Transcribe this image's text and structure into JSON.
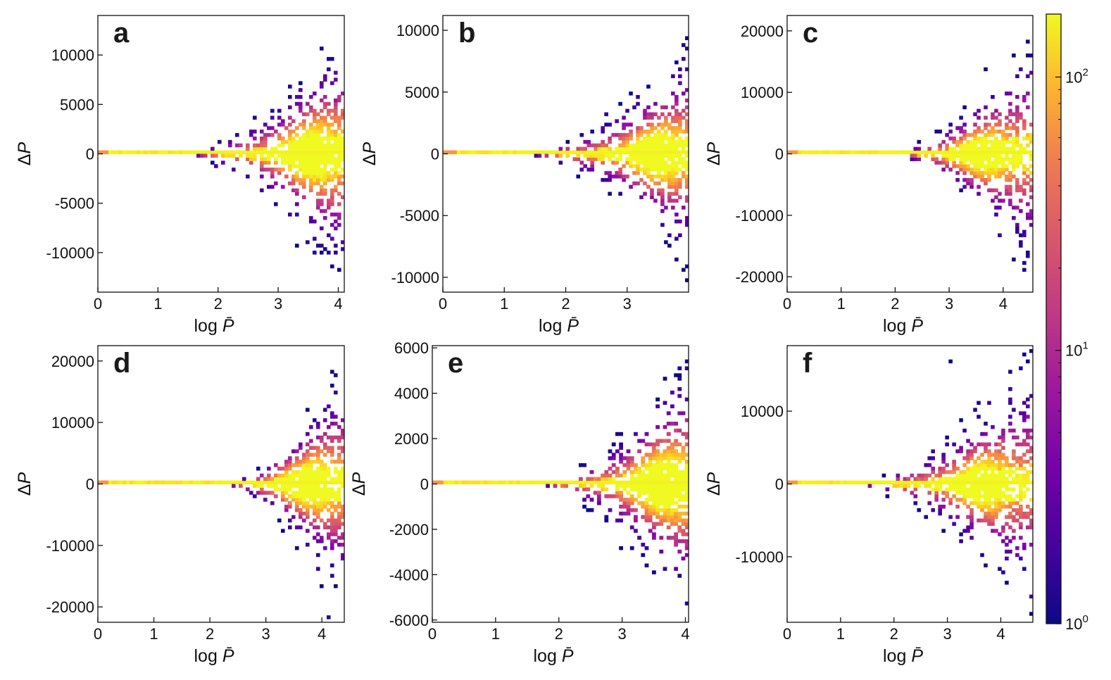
{
  "chart_data": {
    "colorbar": {
      "colormap": "plasma",
      "scale": "log",
      "range": [
        1,
        170
      ],
      "tick_labels": [
        {
          "value": 1,
          "base": "10",
          "exp": "0"
        },
        {
          "value": 10,
          "base": "10",
          "exp": "1"
        },
        {
          "value": 100,
          "base": "10",
          "exp": "2"
        }
      ]
    },
    "panels": [
      {
        "letter": "a",
        "type": "heatmap",
        "xlabel": "log",
        "xlabel_var": "P̄",
        "ylabel": "ΔP",
        "xlim": [
          0,
          4.1
        ],
        "ylim": [
          -14000,
          14000
        ],
        "xticks": [
          0,
          1,
          2,
          3,
          4
        ],
        "xtick_labels": [
          "0",
          "1",
          "2",
          "3",
          "4"
        ],
        "yticks": [
          -10000,
          -5000,
          0,
          5000,
          10000
        ],
        "ytick_labels": [
          "-10000",
          "-5000",
          "0",
          "5000",
          "10000"
        ],
        "spread_start_x": 1.4,
        "bright_core_x": 3.5,
        "envelope_max": 14000
      },
      {
        "letter": "b",
        "type": "heatmap",
        "xlabel": "log",
        "xlabel_var": "P̄",
        "ylabel": "ΔP",
        "xlim": [
          0,
          4.0
        ],
        "ylim": [
          -11200,
          11200
        ],
        "xticks": [
          0,
          1,
          2,
          3
        ],
        "xtick_labels": [
          "0",
          "1",
          "2",
          "3"
        ],
        "yticks": [
          -10000,
          -5000,
          0,
          5000,
          10000
        ],
        "ytick_labels": [
          "-10000",
          "-5000",
          "0",
          "5000",
          "10000"
        ],
        "spread_start_x": 1.25,
        "bright_core_x": 3.45,
        "envelope_max": 9500
      },
      {
        "letter": "c",
        "type": "heatmap",
        "xlabel": "log",
        "xlabel_var": "P̄",
        "ylabel": "ΔP",
        "xlim": [
          0,
          4.55
        ],
        "ylim": [
          -22500,
          22500
        ],
        "xticks": [
          0,
          1,
          2,
          3,
          4
        ],
        "xtick_labels": [
          "0",
          "1",
          "2",
          "3",
          "4"
        ],
        "yticks": [
          -20000,
          -10000,
          0,
          10000,
          20000
        ],
        "ytick_labels": [
          "-20000",
          "-10000",
          "0",
          "10000",
          "20000"
        ],
        "spread_start_x": 1.85,
        "bright_core_x": 3.55,
        "envelope_max": 22000
      },
      {
        "letter": "d",
        "type": "heatmap",
        "xlabel": "log",
        "xlabel_var": "P̄",
        "ylabel": "ΔP",
        "xlim": [
          0,
          4.4
        ],
        "ylim": [
          -22500,
          22500
        ],
        "xticks": [
          0,
          1,
          2,
          3,
          4
        ],
        "xtick_labels": [
          "0",
          "1",
          "2",
          "3",
          "4"
        ],
        "yticks": [
          -20000,
          -10000,
          0,
          10000,
          20000
        ],
        "ytick_labels": [
          "-20000",
          "-10000",
          "0",
          "10000",
          "20000"
        ],
        "spread_start_x": 2.2,
        "bright_core_x": 3.7,
        "envelope_max": 22000
      },
      {
        "letter": "e",
        "type": "heatmap",
        "xlabel": "log",
        "xlabel_var": "P̄",
        "ylabel": "ΔP",
        "xlim": [
          0,
          4.05
        ],
        "ylim": [
          -6100,
          6100
        ],
        "xticks": [
          0,
          1,
          2,
          3,
          4
        ],
        "xtick_labels": [
          "0",
          "1",
          "2",
          "3",
          "4"
        ],
        "yticks": [
          -6000,
          -4000,
          -2000,
          0,
          2000,
          4000,
          6000
        ],
        "ytick_labels": [
          "-6000",
          "-4000",
          "-2000",
          "0",
          "2000",
          "4000",
          "6000"
        ],
        "spread_start_x": 1.6,
        "bright_core_x": 3.6,
        "envelope_max": 6000
      },
      {
        "letter": "f",
        "type": "heatmap",
        "xlabel": "log",
        "xlabel_var": "P̄",
        "ylabel": "ΔP",
        "xlim": [
          0,
          4.6
        ],
        "ylim": [
          -19000,
          19000
        ],
        "xticks": [
          0,
          1,
          2,
          3,
          4
        ],
        "xtick_labels": [
          "0",
          "1",
          "2",
          "3",
          "4"
        ],
        "yticks": [
          -10000,
          0,
          10000
        ],
        "ytick_labels": [
          "-10000",
          "0",
          "10000"
        ],
        "spread_start_x": 1.2,
        "bright_core_x": 3.6,
        "envelope_max": 19000
      }
    ]
  }
}
